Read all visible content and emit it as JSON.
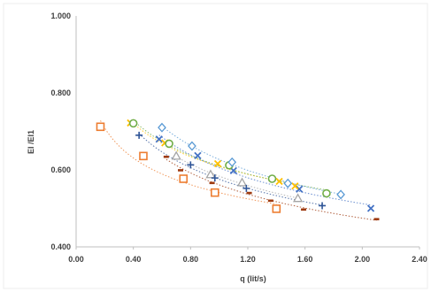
{
  "chart_data": {
    "type": "scatter",
    "title": "",
    "xlabel": "q (lit/s)",
    "ylabel": "El /El1",
    "xlim": [
      0.0,
      2.4
    ],
    "ylim": [
      0.4,
      1.0
    ],
    "x_ticks": [
      "0.00",
      "0.40",
      "0.80",
      "1.20",
      "1.60",
      "2.00",
      "2.40"
    ],
    "y_ticks": [
      "0.400",
      "0.600",
      "0.800",
      "1.000"
    ],
    "grid": false,
    "legend": "none",
    "series": [
      {
        "marker": "square",
        "color": "#ED7D31",
        "x": [
          0.17,
          0.47,
          0.75,
          0.97,
          1.4
        ],
        "y": [
          0.712,
          0.636,
          0.577,
          0.541,
          0.499
        ]
      },
      {
        "marker": "dash",
        "color": "#9E3A10",
        "x": [
          0.63,
          0.73,
          0.95,
          1.21,
          1.36,
          1.59,
          2.1
        ],
        "y": [
          0.634,
          0.599,
          0.566,
          0.54,
          0.52,
          0.497,
          0.472
        ]
      },
      {
        "marker": "triangle",
        "color": "#A5A5A5",
        "x": [
          0.7,
          0.94,
          1.16,
          1.55
        ],
        "y": [
          0.636,
          0.588,
          0.567,
          0.526
        ]
      },
      {
        "marker": "plus",
        "color": "#2F5597",
        "x": [
          0.44,
          0.8,
          0.97,
          1.19,
          1.72
        ],
        "y": [
          0.69,
          0.613,
          0.579,
          0.552,
          0.507
        ]
      },
      {
        "marker": "x",
        "color": "#4472C4",
        "x": [
          0.58,
          0.85,
          1.1,
          1.56,
          2.06
        ],
        "y": [
          0.68,
          0.637,
          0.598,
          0.55,
          0.5
        ]
      },
      {
        "marker": "x",
        "color": "#FFC000",
        "x": [
          0.38,
          0.62,
          0.99,
          1.42,
          1.53
        ],
        "y": [
          0.722,
          0.67,
          0.616,
          0.57,
          0.558
        ]
      },
      {
        "marker": "circle",
        "color": "#70AD47",
        "x": [
          0.4,
          0.65,
          1.07,
          1.37,
          1.75
        ],
        "y": [
          0.721,
          0.668,
          0.612,
          0.577,
          0.539
        ]
      },
      {
        "marker": "diamond",
        "color": "#5B9BD5",
        "x": [
          0.6,
          0.81,
          1.09,
          1.48,
          1.85
        ],
        "y": [
          0.71,
          0.662,
          0.62,
          0.565,
          0.536
        ]
      }
    ]
  }
}
